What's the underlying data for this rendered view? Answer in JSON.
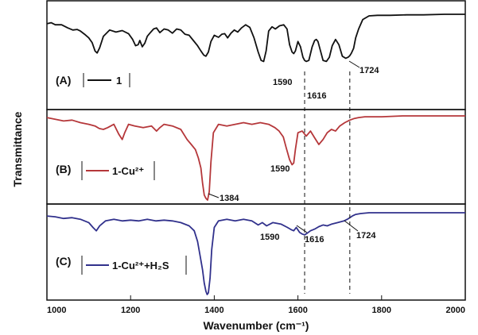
{
  "chart_data": {
    "type": "line",
    "xlabel": "Wavenumber (cm⁻¹)",
    "ylabel": "Transmittance",
    "xlim": [
      1000,
      2000
    ],
    "xticks": [
      "1000",
      "1200",
      "1400",
      "1600",
      "1800",
      "2000"
    ],
    "panels": [
      {
        "label": "(A)",
        "series": [
          {
            "name": "1",
            "color": "#111111",
            "x": [
              1000,
              1010,
              1020,
              1035,
              1050,
              1062,
              1072,
              1080,
              1090,
              1100,
              1108,
              1115,
              1120,
              1126,
              1135,
              1150,
              1165,
              1180,
              1195,
              1205,
              1212,
              1218,
              1222,
              1228,
              1234,
              1240,
              1246,
              1255,
              1262,
              1270,
              1280,
              1290,
              1300,
              1310,
              1320,
              1330,
              1340,
              1350,
              1360,
              1368,
              1375,
              1380,
              1386,
              1392,
              1400,
              1410,
              1418,
              1425,
              1432,
              1440,
              1448,
              1456,
              1465,
              1475,
              1485,
              1495,
              1505,
              1512,
              1518,
              1524,
              1530,
              1538,
              1546,
              1556,
              1566,
              1574,
              1580,
              1586,
              1590,
              1594,
              1600,
              1606,
              1612,
              1616,
              1620,
              1626,
              1634,
              1640,
              1644,
              1648,
              1654,
              1660,
              1668,
              1675,
              1682,
              1690,
              1698,
              1706,
              1714,
              1720,
              1724,
              1728,
              1733,
              1738,
              1745,
              1755,
              1770,
              1790,
              1820,
              1860,
              1900,
              1950,
              2000
            ],
            "y": [
              0.82,
              0.84,
              0.8,
              0.8,
              0.74,
              0.7,
              0.71,
              0.68,
              0.62,
              0.55,
              0.46,
              0.3,
              0.26,
              0.36,
              0.58,
              0.7,
              0.66,
              0.69,
              0.63,
              0.52,
              0.4,
              0.42,
              0.5,
              0.38,
              0.45,
              0.58,
              0.64,
              0.72,
              0.74,
              0.65,
              0.72,
              0.7,
              0.64,
              0.72,
              0.7,
              0.62,
              0.6,
              0.5,
              0.4,
              0.3,
              0.22,
              0.2,
              0.28,
              0.48,
              0.6,
              0.56,
              0.62,
              0.63,
              0.55,
              0.64,
              0.7,
              0.66,
              0.74,
              0.8,
              0.75,
              0.55,
              0.28,
              0.12,
              0.1,
              0.3,
              0.68,
              0.76,
              0.72,
              0.78,
              0.8,
              0.72,
              0.42,
              0.28,
              0.25,
              0.3,
              0.48,
              0.38,
              0.18,
              0.12,
              0.1,
              0.12,
              0.38,
              0.5,
              0.52,
              0.48,
              0.3,
              0.12,
              0.1,
              0.18,
              0.4,
              0.52,
              0.42,
              0.2,
              0.16,
              0.18,
              0.21,
              0.26,
              0.35,
              0.55,
              0.72,
              0.9,
              0.97,
              0.98,
              0.98,
              0.99,
              0.99,
              1.0,
              1.0
            ]
          }
        ],
        "annotations": [
          {
            "text": "1590",
            "x": 1590
          },
          {
            "text": "1616",
            "x": 1616
          },
          {
            "text": "1724",
            "x": 1724
          }
        ]
      },
      {
        "label": "(B)",
        "series": [
          {
            "name": "1-Cu²⁺",
            "color": "#b5373a",
            "x": [
              1000,
              1020,
              1040,
              1060,
              1080,
              1100,
              1115,
              1125,
              1135,
              1145,
              1160,
              1172,
              1180,
              1186,
              1195,
              1210,
              1230,
              1250,
              1262,
              1270,
              1280,
              1300,
              1320,
              1335,
              1345,
              1355,
              1362,
              1368,
              1372,
              1376,
              1380,
              1384,
              1388,
              1392,
              1398,
              1410,
              1430,
              1450,
              1470,
              1490,
              1510,
              1530,
              1545,
              1555,
              1565,
              1572,
              1580,
              1586,
              1590,
              1594,
              1600,
              1610,
              1620,
              1630,
              1640,
              1650,
              1660,
              1670,
              1680,
              1690,
              1700,
              1712,
              1724,
              1735,
              1745,
              1760,
              1800,
              1850,
              1900,
              1950,
              2000
            ],
            "y": [
              0.98,
              0.96,
              0.94,
              0.95,
              0.92,
              0.9,
              0.88,
              0.85,
              0.84,
              0.86,
              0.9,
              0.78,
              0.72,
              0.8,
              0.9,
              0.88,
              0.86,
              0.88,
              0.82,
              0.86,
              0.9,
              0.88,
              0.84,
              0.72,
              0.66,
              0.6,
              0.5,
              0.38,
              0.2,
              0.06,
              0.02,
              0.0,
              0.1,
              0.45,
              0.8,
              0.9,
              0.88,
              0.9,
              0.92,
              0.9,
              0.92,
              0.9,
              0.86,
              0.82,
              0.75,
              0.62,
              0.48,
              0.42,
              0.44,
              0.6,
              0.8,
              0.82,
              0.76,
              0.82,
              0.74,
              0.66,
              0.72,
              0.8,
              0.84,
              0.82,
              0.88,
              0.92,
              0.95,
              0.97,
              0.98,
              0.99,
              0.99,
              1.0,
              1.0,
              1.0,
              1.0
            ]
          }
        ],
        "annotations": [
          {
            "text": "1384",
            "x": 1384
          },
          {
            "text": "1590",
            "x": 1590
          }
        ]
      },
      {
        "label": "(C)",
        "series": [
          {
            "name": "1-Cu²⁺+H₂S",
            "color": "#31318c",
            "x": [
              1000,
              1020,
              1040,
              1060,
              1080,
              1100,
              1110,
              1118,
              1126,
              1140,
              1160,
              1180,
              1200,
              1220,
              1240,
              1260,
              1280,
              1300,
              1320,
              1340,
              1352,
              1360,
              1366,
              1372,
              1376,
              1380,
              1383,
              1386,
              1390,
              1394,
              1400,
              1410,
              1430,
              1450,
              1470,
              1490,
              1505,
              1515,
              1525,
              1540,
              1560,
              1575,
              1585,
              1590,
              1596,
              1604,
              1610,
              1616,
              1622,
              1630,
              1640,
              1650,
              1660,
              1670,
              1680,
              1695,
              1710,
              1718,
              1724,
              1730,
              1738,
              1750,
              1770,
              1800,
              1850,
              1900,
              1950,
              2000
            ],
            "y": [
              0.96,
              0.95,
              0.93,
              0.94,
              0.92,
              0.88,
              0.82,
              0.78,
              0.84,
              0.9,
              0.92,
              0.9,
              0.91,
              0.9,
              0.92,
              0.9,
              0.91,
              0.9,
              0.88,
              0.84,
              0.78,
              0.65,
              0.48,
              0.3,
              0.14,
              0.04,
              0.0,
              0.02,
              0.2,
              0.55,
              0.82,
              0.9,
              0.92,
              0.9,
              0.92,
              0.9,
              0.85,
              0.88,
              0.84,
              0.88,
              0.86,
              0.82,
              0.79,
              0.78,
              0.82,
              0.76,
              0.74,
              0.73,
              0.75,
              0.78,
              0.8,
              0.83,
              0.85,
              0.84,
              0.86,
              0.88,
              0.9,
              0.92,
              0.94,
              0.96,
              0.98,
              0.99,
              1.0,
              1.0,
              1.0,
              1.0,
              1.0,
              1.0
            ]
          }
        ],
        "annotations": [
          {
            "text": "1590",
            "x": 1590
          },
          {
            "text": "1616",
            "x": 1616
          },
          {
            "text": "1724",
            "x": 1724
          }
        ]
      }
    ],
    "reference_lines_x": [
      1616,
      1724
    ],
    "grid": false,
    "legend_position": "inside-left"
  }
}
